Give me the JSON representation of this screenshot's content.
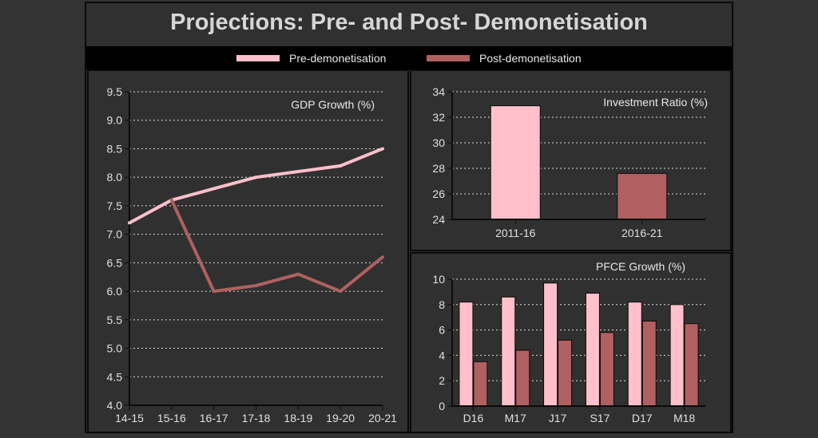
{
  "title": "Projections: Pre- and Post- Demonetisation",
  "legend": [
    {
      "label": "Pre-demonetisation",
      "color": "#ffc0cb"
    },
    {
      "label": "Post-demonetisation",
      "color": "#b06060"
    }
  ],
  "chart_data": [
    {
      "type": "line",
      "title": "GDP Growth (%)",
      "x": [
        "14-15",
        "15-16",
        "16-17",
        "17-18",
        "18-19",
        "19-20",
        "20-21"
      ],
      "ylim": [
        4.0,
        9.5
      ],
      "yticks": [
        "4.0",
        "4.5",
        "5.0",
        "5.5",
        "6.0",
        "6.5",
        "7.0",
        "7.5",
        "8.0",
        "8.5",
        "9.0",
        "9.5"
      ],
      "grid": "horizontal dotted",
      "series": [
        {
          "name": "Pre-demonetisation",
          "color": "#ffc0cb",
          "values": [
            7.2,
            7.6,
            7.8,
            8.0,
            8.1,
            8.2,
            8.5
          ]
        },
        {
          "name": "Post-demonetisation",
          "color": "#b06060",
          "values": [
            null,
            7.6,
            6.0,
            6.1,
            6.3,
            6.0,
            6.6
          ]
        }
      ]
    },
    {
      "type": "bar",
      "title": "Investment Ratio (%)",
      "categories": [
        "2011-16",
        "2016-21"
      ],
      "ylim": [
        24,
        34
      ],
      "yticks": [
        "24",
        "26",
        "28",
        "30",
        "32",
        "34"
      ],
      "grid": "horizontal dotted",
      "values": [
        32.9,
        27.6
      ],
      "colors": [
        "#ffc0cb",
        "#b06060"
      ]
    },
    {
      "type": "bar",
      "title": "PFCE Growth (%)",
      "categories": [
        "D16",
        "M17",
        "J17",
        "S17",
        "D17",
        "M18"
      ],
      "ylim": [
        0,
        10
      ],
      "yticks": [
        "0",
        "2",
        "4",
        "6",
        "8",
        "10"
      ],
      "grid": "horizontal dotted",
      "series": [
        {
          "name": "Pre-demonetisation",
          "color": "#ffc0cb",
          "values": [
            8.2,
            8.6,
            9.7,
            8.9,
            8.2,
            8.0
          ]
        },
        {
          "name": "Post-demonetisation",
          "color": "#b06060",
          "values": [
            3.5,
            4.4,
            5.2,
            5.8,
            6.7,
            6.5
          ]
        }
      ]
    }
  ]
}
